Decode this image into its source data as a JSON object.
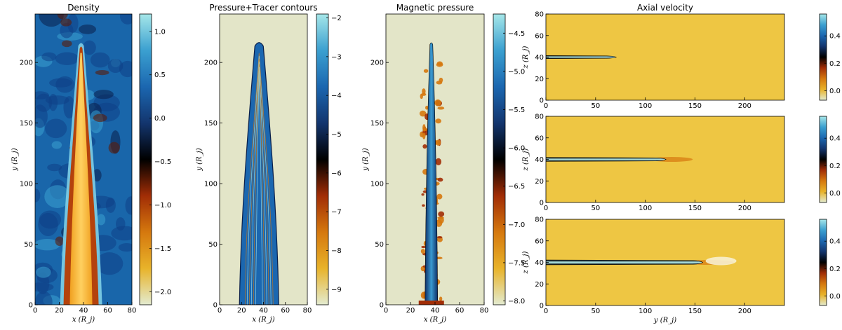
{
  "colors": {
    "cmap": [
      "#e3ebd0",
      "#e8b32a",
      "#d5780e",
      "#a12d06",
      "#000000",
      "#13356e",
      "#1b67b0",
      "#3ba0d0",
      "#a6e7e9"
    ],
    "fill_background": "#e3e5c8",
    "ambient_yellow": "#eec643",
    "ambient_blue": "#1966aa"
  },
  "chart_data": [
    {
      "type": "heatmap",
      "title": "Density",
      "xlabel": "x (R_j)",
      "ylabel": "y (R_j)",
      "xlim": [
        0,
        80
      ],
      "ylim": [
        0,
        240
      ],
      "xticks": [
        "0",
        "20",
        "40",
        "60",
        "80"
      ],
      "yticks": [
        "0",
        "50",
        "100",
        "150",
        "200"
      ],
      "colorbar": {
        "min": -2.15,
        "max": 1.2,
        "ticks": [
          "1.0",
          "0.5",
          "0.0",
          "−0.5",
          "−1.0",
          "−1.5",
          "−2.0"
        ]
      },
      "jet": {
        "tip_y": 216,
        "axis_x": 38
      }
    },
    {
      "type": "heatmap",
      "title": "Pressure+Tracer contours",
      "xlabel": "x (R_j)",
      "ylabel": "y (R_j)",
      "xlim": [
        0,
        80
      ],
      "ylim": [
        0,
        240
      ],
      "xticks": [
        "0",
        "20",
        "40",
        "60",
        "80"
      ],
      "yticks": [
        "0",
        "50",
        "100",
        "150",
        "200"
      ],
      "colorbar": {
        "min": -9.4,
        "max": -1.9,
        "ticks": [
          "−2",
          "−3",
          "−4",
          "−5",
          "−6",
          "−7",
          "−8",
          "−9"
        ]
      },
      "jet": {
        "tip_y": 217,
        "axis_x": 36
      }
    },
    {
      "type": "heatmap",
      "title": "Magnetic pressure",
      "xlabel": "x (R_j)",
      "ylabel": "y (R_j)",
      "xlim": [
        0,
        80
      ],
      "ylim": [
        0,
        240
      ],
      "xticks": [
        "0",
        "20",
        "40",
        "60",
        "80"
      ],
      "yticks": [
        "0",
        "50",
        "100",
        "150",
        "200"
      ],
      "colorbar": {
        "min": -8.05,
        "max": -4.25,
        "ticks": [
          "−4.5",
          "−5.0",
          "−5.5",
          "−6.0",
          "−6.5",
          "−7.0",
          "−7.5",
          "−8.0"
        ]
      },
      "jet": {
        "tip_y": 216,
        "axis_x": 37
      }
    },
    {
      "type": "heatmap",
      "title": "Axial velocity",
      "xlabel": "",
      "ylabel": "z (R_j)",
      "xlim": [
        0,
        240
      ],
      "ylim": [
        0,
        80
      ],
      "xticks": [
        "0",
        "50",
        "100",
        "150",
        "200"
      ],
      "yticks": [
        "0",
        "20",
        "40",
        "60",
        "80"
      ],
      "colorbar": {
        "min": -0.07,
        "max": 0.56,
        "ticks": [
          "0.4",
          "0.2",
          "0.0"
        ]
      },
      "jet": {
        "head_y": 68,
        "axis_z": 40
      }
    },
    {
      "type": "heatmap",
      "title": "",
      "xlabel": "",
      "ylabel": "z (R_j)",
      "xlim": [
        0,
        240
      ],
      "ylim": [
        0,
        80
      ],
      "xticks": [
        "0",
        "50",
        "100",
        "150",
        "200"
      ],
      "yticks": [
        "0",
        "20",
        "40",
        "60",
        "80"
      ],
      "colorbar": {
        "min": -0.07,
        "max": 0.56,
        "ticks": [
          "0.4",
          "0.2",
          "0.0"
        ]
      },
      "jet": {
        "head_y": 118,
        "axis_z": 40
      }
    },
    {
      "type": "heatmap",
      "title": "",
      "xlabel": "y (R_j)",
      "ylabel": "z (R_j)",
      "xlim": [
        0,
        240
      ],
      "ylim": [
        0,
        80
      ],
      "xticks": [
        "0",
        "50",
        "100",
        "150",
        "200"
      ],
      "yticks": [
        "0",
        "20",
        "40",
        "60",
        "80"
      ],
      "colorbar": {
        "min": -0.07,
        "max": 0.56,
        "ticks": [
          "0.4",
          "0.2",
          "0.0"
        ]
      },
      "jet": {
        "head_y": 155,
        "axis_z": 40
      }
    }
  ]
}
